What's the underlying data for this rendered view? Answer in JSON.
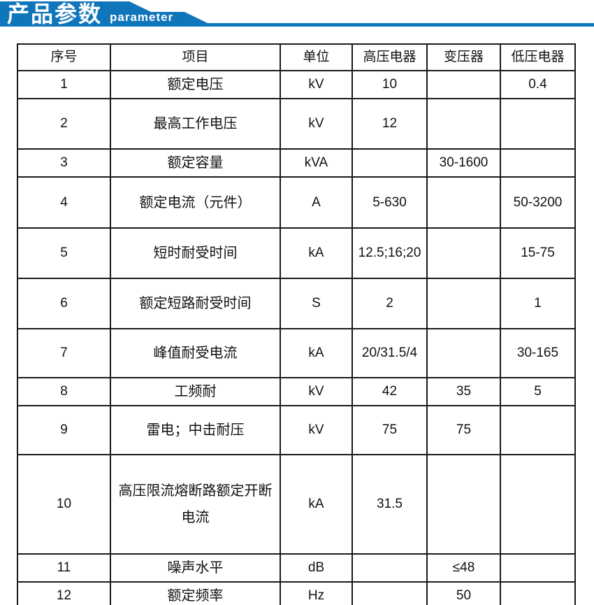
{
  "banner": {
    "title": "产品参数",
    "subtitle": "parameter",
    "accent_color": "#1076bb"
  },
  "table": {
    "columns": [
      "序号",
      "项目",
      "单位",
      "高压电器",
      "变压器",
      "低压电器"
    ],
    "rows": [
      [
        "1",
        "额定电压",
        "kV",
        "10",
        "",
        "0.4"
      ],
      [
        "2",
        "最高工作电压",
        "kV",
        "12",
        "",
        ""
      ],
      [
        "3",
        "额定容量",
        "kVA",
        "",
        "30-1600",
        ""
      ],
      [
        "4",
        "额定电流（元件）",
        "A",
        "5-630",
        "",
        "50-3200"
      ],
      [
        "5",
        "短时耐受时间",
        "kA",
        "12.5;16;20",
        "",
        "15-75"
      ],
      [
        "6",
        "额定短路耐受时间",
        "S",
        "2",
        "",
        "1"
      ],
      [
        "7",
        "峰值耐受电流",
        "kA",
        "20/31.5/4",
        "",
        "30-165"
      ],
      [
        "8",
        "工频耐",
        "kV",
        "42",
        "35",
        "5"
      ],
      [
        "9",
        "雷电；中击耐压",
        "kV",
        "75",
        "75",
        ""
      ],
      [
        "10",
        "高压限流熔断路额定开断电流",
        "kA",
        "31.5",
        "",
        ""
      ],
      [
        "11",
        "噪声水平",
        "dB",
        "",
        "≤48",
        ""
      ],
      [
        "12",
        "额定频率",
        "Hz",
        "",
        "50",
        ""
      ]
    ]
  }
}
